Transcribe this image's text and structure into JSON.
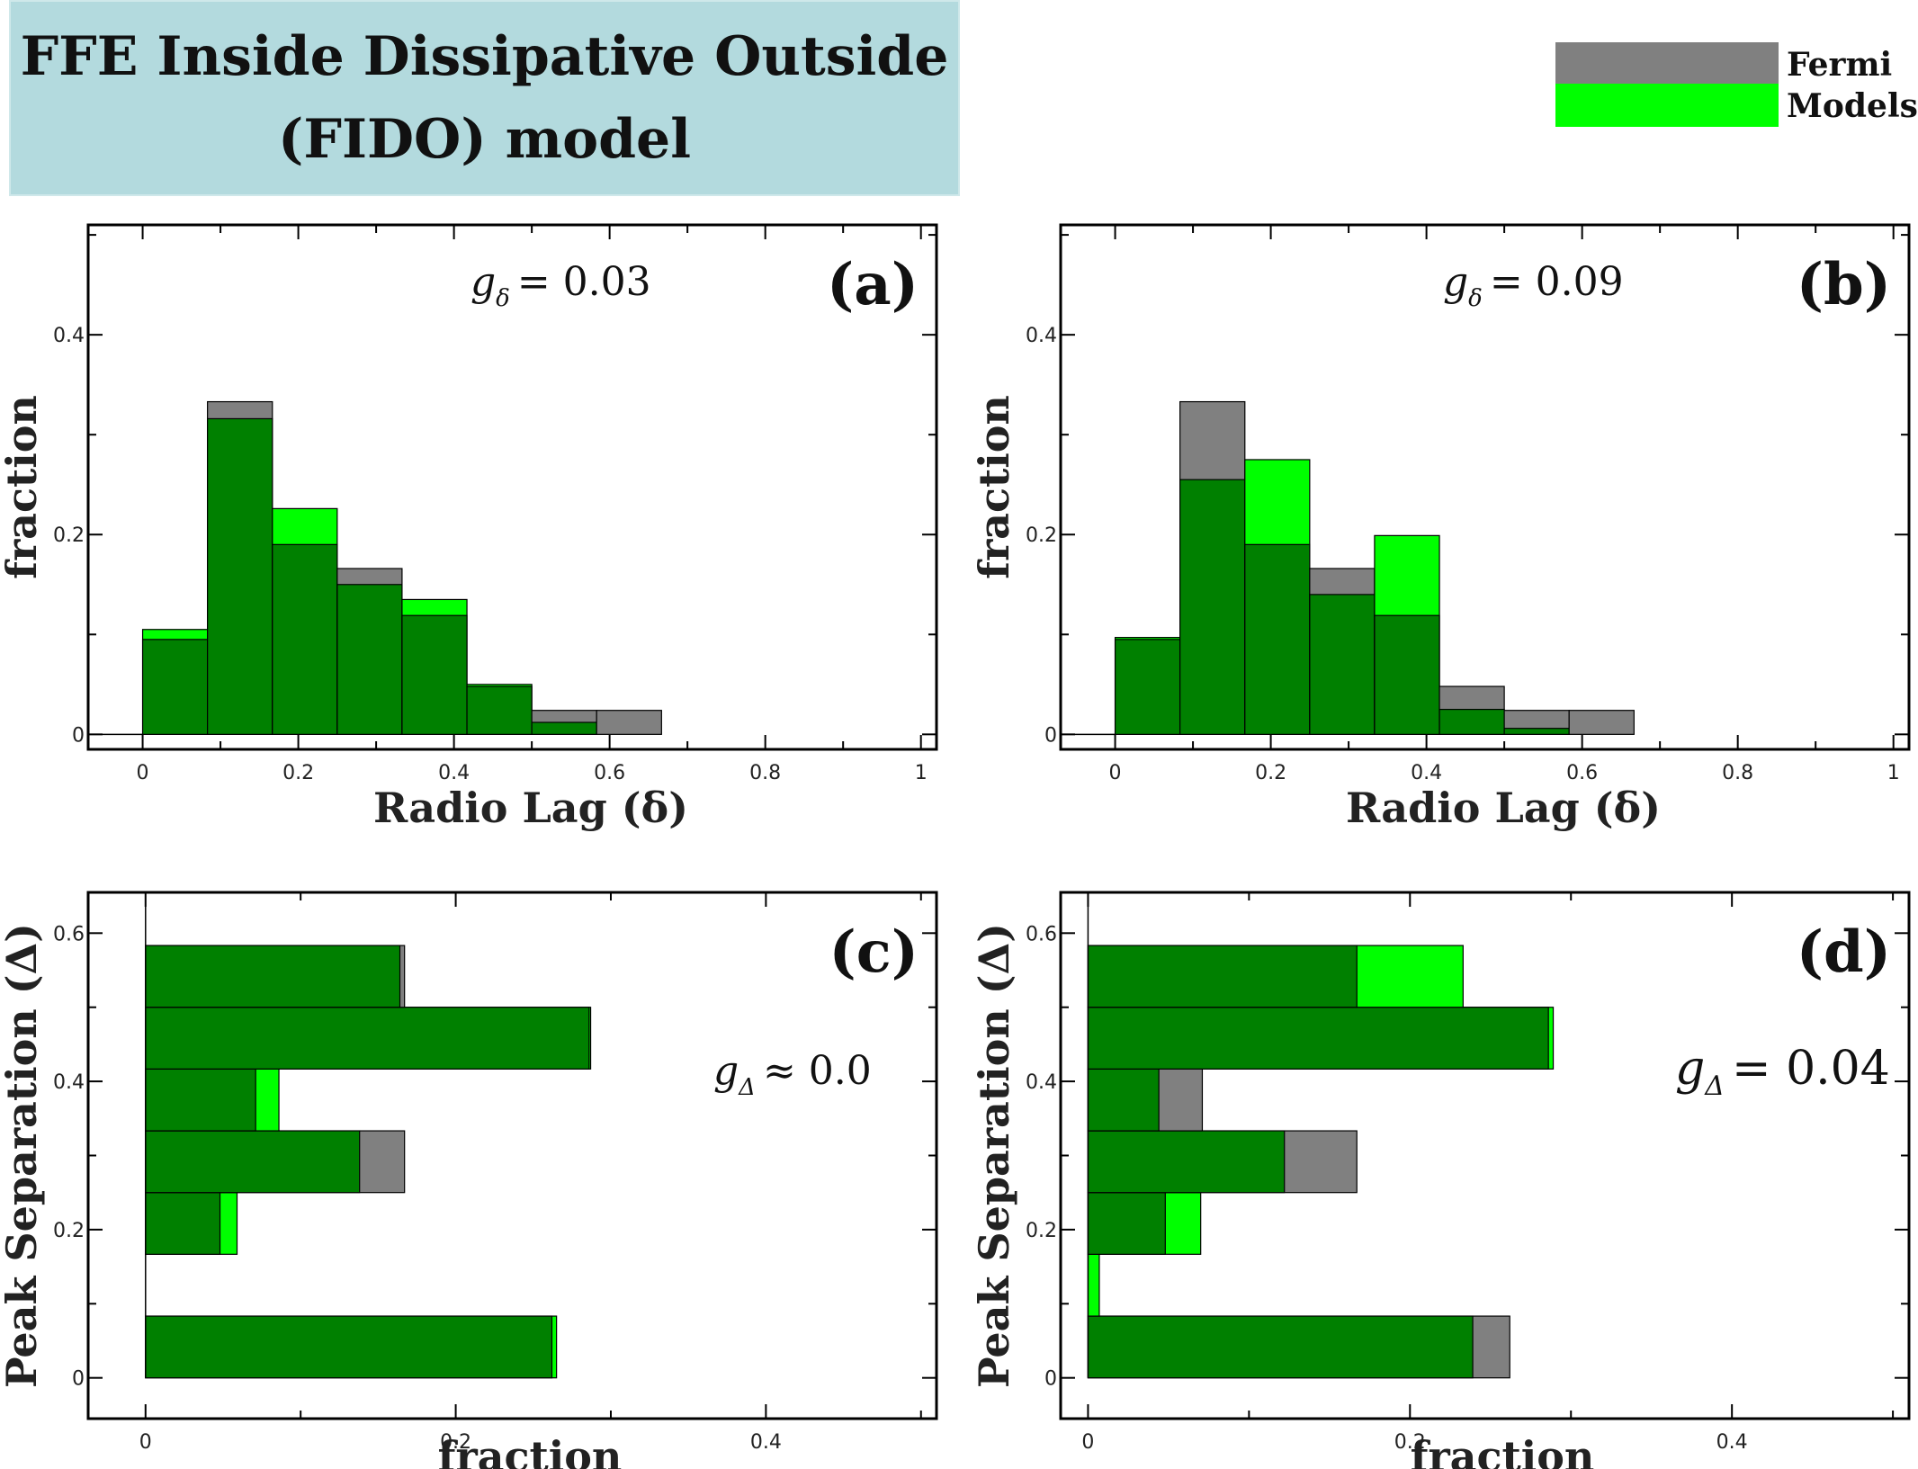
{
  "title": {
    "line1": "FFE Inside Dissipative Outside",
    "line2": "(FIDO) model"
  },
  "colors": {
    "fermi": "#808080",
    "models": "#00ff00",
    "overlap": "#008000",
    "title_bg": "#b3dade"
  },
  "legend": [
    {
      "label": "Fermi",
      "color": "#808080"
    },
    {
      "label": "Models",
      "color": "#00ff00"
    }
  ],
  "chart_data": [
    {
      "panel": "(a)",
      "type": "bar",
      "orientation": "vertical",
      "annotation": {
        "symbol": "g",
        "subscript": "δ",
        "relation": "= 0.03"
      },
      "xlabel": "Radio Lag (δ)",
      "ylabel": "fraction",
      "xlim": [
        -0.07,
        1.02
      ],
      "ylim": [
        -0.015,
        0.51
      ],
      "xticks": [
        "0",
        "0.2",
        "0.4",
        "0.6",
        "0.8",
        "1"
      ],
      "yticks": [
        "0",
        "0.2",
        "0.4"
      ],
      "bins": [
        [
          0,
          0.0833
        ],
        [
          0.0833,
          0.1667
        ],
        [
          0.1667,
          0.25
        ],
        [
          0.25,
          0.3333
        ],
        [
          0.3333,
          0.4167
        ],
        [
          0.4167,
          0.5
        ],
        [
          0.5,
          0.5833
        ],
        [
          0.5833,
          0.6667
        ]
      ],
      "series": [
        {
          "name": "Fermi",
          "values": [
            0.095,
            0.333,
            0.19,
            0.166,
            0.119,
            0.048,
            0.024,
            0.024
          ]
        },
        {
          "name": "Models",
          "values": [
            0.105,
            0.316,
            0.226,
            0.15,
            0.135,
            0.05,
            0.012,
            0.0
          ]
        }
      ]
    },
    {
      "panel": "(b)",
      "type": "bar",
      "orientation": "vertical",
      "annotation": {
        "symbol": "g",
        "subscript": "δ",
        "relation": "= 0.09"
      },
      "xlabel": "Radio Lag (δ)",
      "ylabel": "fraction",
      "xlim": [
        -0.07,
        1.02
      ],
      "ylim": [
        -0.015,
        0.51
      ],
      "xticks": [
        "0",
        "0.2",
        "0.4",
        "0.6",
        "0.8",
        "1"
      ],
      "yticks": [
        "0",
        "0.2",
        "0.4"
      ],
      "bins": [
        [
          0,
          0.0833
        ],
        [
          0.0833,
          0.1667
        ],
        [
          0.1667,
          0.25
        ],
        [
          0.25,
          0.3333
        ],
        [
          0.3333,
          0.4167
        ],
        [
          0.4167,
          0.5
        ],
        [
          0.5,
          0.5833
        ],
        [
          0.5833,
          0.6667
        ]
      ],
      "series": [
        {
          "name": "Fermi",
          "values": [
            0.095,
            0.333,
            0.19,
            0.166,
            0.119,
            0.048,
            0.024,
            0.024
          ]
        },
        {
          "name": "Models",
          "values": [
            0.097,
            0.255,
            0.275,
            0.14,
            0.199,
            0.025,
            0.006,
            0.0
          ]
        }
      ]
    },
    {
      "panel": "(c)",
      "type": "bar",
      "orientation": "horizontal",
      "annotation": {
        "symbol": "g",
        "subscript": "Δ",
        "relation": "≈ 0.0"
      },
      "xlabel": "fraction",
      "ylabel": "Peak Separation (Δ)",
      "xlim": [
        -0.037,
        0.51
      ],
      "ylim": [
        -0.055,
        0.655
      ],
      "xticks": [
        "0",
        "0.2",
        "0.4"
      ],
      "yticks": [
        "0",
        "0.2",
        "0.4",
        "0.6"
      ],
      "bins": [
        [
          0,
          0.0833
        ],
        [
          0.0833,
          0.1667
        ],
        [
          0.1667,
          0.25
        ],
        [
          0.25,
          0.3333
        ],
        [
          0.3333,
          0.4167
        ],
        [
          0.4167,
          0.5
        ],
        [
          0.5,
          0.5833
        ]
      ],
      "series": [
        {
          "name": "Fermi",
          "values": [
            0.262,
            0.0,
            0.048,
            0.167,
            0.071,
            0.286,
            0.167
          ]
        },
        {
          "name": "Models",
          "values": [
            0.265,
            0.0,
            0.059,
            0.138,
            0.086,
            0.287,
            0.164
          ]
        }
      ]
    },
    {
      "panel": "(d)",
      "type": "bar",
      "orientation": "horizontal",
      "annotation": {
        "symbol": "g",
        "subscript": "Δ",
        "relation": "= 0.04"
      },
      "xlabel": "fraction",
      "ylabel": "Peak Separation (Δ)",
      "xlim": [
        -0.017,
        0.51
      ],
      "ylim": [
        -0.055,
        0.655
      ],
      "xticks": [
        "0",
        "0.2",
        "0.4"
      ],
      "yticks": [
        "0",
        "0.2",
        "0.4",
        "0.6"
      ],
      "bins": [
        [
          0,
          0.0833
        ],
        [
          0.0833,
          0.1667
        ],
        [
          0.1667,
          0.25
        ],
        [
          0.25,
          0.3333
        ],
        [
          0.3333,
          0.4167
        ],
        [
          0.4167,
          0.5
        ],
        [
          0.5,
          0.5833
        ]
      ],
      "series": [
        {
          "name": "Fermi",
          "values": [
            0.262,
            0.0,
            0.048,
            0.167,
            0.071,
            0.286,
            0.167
          ]
        },
        {
          "name": "Models",
          "values": [
            0.239,
            0.007,
            0.07,
            0.122,
            0.044,
            0.289,
            0.233
          ]
        }
      ]
    }
  ]
}
